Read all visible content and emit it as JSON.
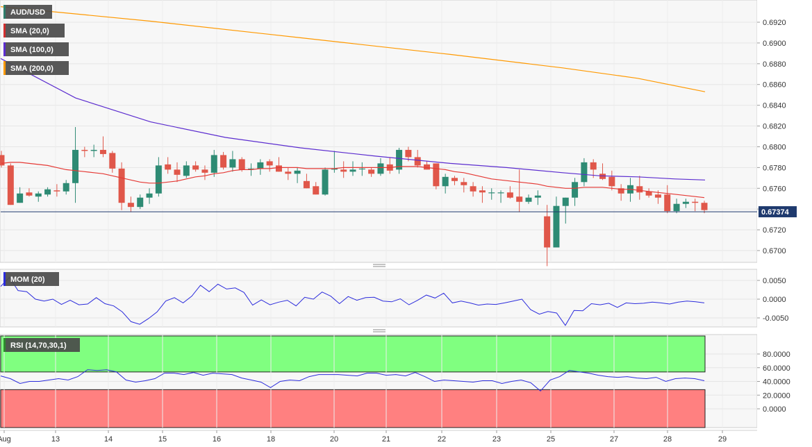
{
  "chart_data": [
    {
      "type": "candlestick",
      "title": "AUD/USD",
      "legend": [
        {
          "label": "AUD/USD",
          "color": "#2e7d6b"
        },
        {
          "label": "SMA (20,0)",
          "color": "#d32f2f"
        },
        {
          "label": "SMA (100,0)",
          "color": "#5b2ccf"
        },
        {
          "label": "SMA (200,0)",
          "color": "#ff9900"
        }
      ],
      "colors": {
        "up": "#2e8b74",
        "down": "#e0574a",
        "sma20": "#e53935",
        "sma100": "#5b2ccf",
        "sma200": "#ff9900",
        "last": "#1f3a6e"
      },
      "ylim": [
        0.6682,
        0.6935
      ],
      "yticks": [
        "0.6920",
        "0.6900",
        "0.6880",
        "0.6860",
        "0.6840",
        "0.6820",
        "0.6800",
        "0.6780",
        "0.6760",
        "0.6740",
        "0.6720",
        "0.6700"
      ],
      "last_value": 0.67374,
      "last_label": "0.67374",
      "candles": [
        [
          0.6792,
          0.6796,
          0.678,
          0.6782
        ],
        [
          0.6782,
          0.6784,
          0.6744,
          0.6744
        ],
        [
          0.6746,
          0.6761,
          0.6746,
          0.6755
        ],
        [
          0.6756,
          0.676,
          0.6752,
          0.6753
        ],
        [
          0.6752,
          0.6757,
          0.6747,
          0.6755
        ],
        [
          0.6754,
          0.6761,
          0.6752,
          0.6759
        ],
        [
          0.6758,
          0.6764,
          0.6752,
          0.6757
        ],
        [
          0.6757,
          0.6768,
          0.6754,
          0.6765
        ],
        [
          0.6765,
          0.6819,
          0.6746,
          0.6797
        ],
        [
          0.6797,
          0.68,
          0.679,
          0.6796
        ],
        [
          0.6796,
          0.6802,
          0.679,
          0.6797
        ],
        [
          0.6797,
          0.681,
          0.679,
          0.6793
        ],
        [
          0.6794,
          0.6796,
          0.6775,
          0.6779
        ],
        [
          0.6779,
          0.6785,
          0.6739,
          0.6746
        ],
        [
          0.6746,
          0.6752,
          0.6737,
          0.6742
        ],
        [
          0.6742,
          0.6754,
          0.674,
          0.6751
        ],
        [
          0.6751,
          0.676,
          0.6745,
          0.6755
        ],
        [
          0.6755,
          0.679,
          0.6752,
          0.6782
        ],
        [
          0.6783,
          0.679,
          0.6774,
          0.6778
        ],
        [
          0.6778,
          0.6785,
          0.6766,
          0.6773
        ],
        [
          0.6772,
          0.6786,
          0.677,
          0.6782
        ],
        [
          0.6782,
          0.6786,
          0.6776,
          0.6778
        ],
        [
          0.6778,
          0.6782,
          0.6768,
          0.6775
        ],
        [
          0.6775,
          0.6797,
          0.6771,
          0.6792
        ],
        [
          0.6792,
          0.6795,
          0.6778,
          0.678
        ],
        [
          0.678,
          0.6796,
          0.6776,
          0.6788
        ],
        [
          0.6788,
          0.679,
          0.6776,
          0.6778
        ],
        [
          0.6778,
          0.6784,
          0.6772,
          0.6779
        ],
        [
          0.6779,
          0.6788,
          0.6773,
          0.6785
        ],
        [
          0.6786,
          0.6788,
          0.6776,
          0.6782
        ],
        [
          0.6782,
          0.679,
          0.6776,
          0.6776
        ],
        [
          0.6776,
          0.678,
          0.6768,
          0.6774
        ],
        [
          0.6774,
          0.678,
          0.6765,
          0.6777
        ],
        [
          0.6767,
          0.6774,
          0.676,
          0.676
        ],
        [
          0.6762,
          0.6766,
          0.6754,
          0.6754
        ],
        [
          0.6754,
          0.678,
          0.6753,
          0.6778
        ],
        [
          0.6778,
          0.6796,
          0.6775,
          0.6779
        ],
        [
          0.6778,
          0.6786,
          0.677,
          0.6776
        ],
        [
          0.6776,
          0.6786,
          0.6772,
          0.6778
        ],
        [
          0.6779,
          0.6785,
          0.6772,
          0.6779
        ],
        [
          0.6778,
          0.678,
          0.6771,
          0.6774
        ],
        [
          0.6774,
          0.6789,
          0.6772,
          0.6784
        ],
        [
          0.6783,
          0.679,
          0.6774,
          0.6777
        ],
        [
          0.6778,
          0.6799,
          0.6774,
          0.6797
        ],
        [
          0.6797,
          0.68,
          0.6786,
          0.679
        ],
        [
          0.679,
          0.6797,
          0.678,
          0.6782
        ],
        [
          0.6783,
          0.6786,
          0.6778,
          0.6778
        ],
        [
          0.6784,
          0.6784,
          0.6759,
          0.6762
        ],
        [
          0.6762,
          0.6774,
          0.6755,
          0.6771
        ],
        [
          0.677,
          0.6772,
          0.6763,
          0.6767
        ],
        [
          0.6766,
          0.677,
          0.6756,
          0.6763
        ],
        [
          0.6762,
          0.6766,
          0.6752,
          0.6757
        ],
        [
          0.6758,
          0.6762,
          0.6746,
          0.6756
        ],
        [
          0.6756,
          0.676,
          0.6749,
          0.6756
        ],
        [
          0.6756,
          0.6758,
          0.6746,
          0.6756
        ],
        [
          0.6756,
          0.6762,
          0.675,
          0.6751
        ],
        [
          0.6752,
          0.6778,
          0.6737,
          0.6747
        ],
        [
          0.6747,
          0.6754,
          0.6745,
          0.6751
        ],
        [
          0.6751,
          0.6758,
          0.6744,
          0.6753
        ],
        [
          0.6733,
          0.6744,
          0.6685,
          0.6703
        ],
        [
          0.6703,
          0.6752,
          0.6703,
          0.6743
        ],
        [
          0.6743,
          0.6751,
          0.6726,
          0.6751
        ],
        [
          0.6751,
          0.677,
          0.6743,
          0.6766
        ],
        [
          0.6766,
          0.6789,
          0.6762,
          0.6785
        ],
        [
          0.6785,
          0.6788,
          0.677,
          0.6778
        ],
        [
          0.6774,
          0.6784,
          0.6768,
          0.6769
        ],
        [
          0.6771,
          0.6777,
          0.6758,
          0.6762
        ],
        [
          0.676,
          0.6764,
          0.6748,
          0.6755
        ],
        [
          0.6755,
          0.677,
          0.6747,
          0.6763
        ],
        [
          0.6762,
          0.6772,
          0.6749,
          0.6756
        ],
        [
          0.6757,
          0.676,
          0.6751,
          0.6753
        ],
        [
          0.6754,
          0.6758,
          0.6745,
          0.6751
        ],
        [
          0.6754,
          0.6763,
          0.6736,
          0.6738
        ],
        [
          0.6738,
          0.675,
          0.6736,
          0.6745
        ],
        [
          0.6745,
          0.675,
          0.6741,
          0.6747
        ],
        [
          0.6747,
          0.675,
          0.6738,
          0.6746
        ],
        [
          0.6746,
          0.6748,
          0.6736,
          0.6739
        ]
      ],
      "sma20": [
        0.6784,
        0.6785,
        0.6785,
        0.6784,
        0.6783,
        0.6782,
        0.678,
        0.6778,
        0.6777,
        0.6776,
        0.6775,
        0.6774,
        0.6772,
        0.677,
        0.6768,
        0.6766,
        0.6765,
        0.6765,
        0.6766,
        0.6767,
        0.6769,
        0.6771,
        0.6772,
        0.6774,
        0.6775,
        0.6777,
        0.6778,
        0.6778,
        0.6779,
        0.6779,
        0.678,
        0.678,
        0.678,
        0.6779,
        0.6779,
        0.6779,
        0.6779,
        0.678,
        0.678,
        0.678,
        0.678,
        0.678,
        0.678,
        0.6781,
        0.6781,
        0.6781,
        0.678,
        0.6779,
        0.6778,
        0.6776,
        0.6775,
        0.6773,
        0.6771,
        0.6769,
        0.6768,
        0.6767,
        0.6766,
        0.6765,
        0.6764,
        0.6762,
        0.6761,
        0.676,
        0.676,
        0.6761,
        0.6761,
        0.6761,
        0.676,
        0.6759,
        0.6759,
        0.6758,
        0.6757,
        0.6756,
        0.6755,
        0.6754,
        0.6753,
        0.6752,
        0.6751
      ],
      "sma100": [
        [
          0,
          0.6885
        ],
        [
          20,
          0.6847
        ],
        [
          40,
          0.6824
        ],
        [
          60,
          0.6809
        ],
        [
          80,
          0.6799
        ],
        [
          100,
          0.6791
        ],
        [
          120,
          0.6784
        ],
        [
          135,
          0.678
        ],
        [
          150,
          0.6775
        ],
        [
          160,
          0.6772
        ],
        [
          170,
          0.6771
        ],
        [
          180,
          0.6769
        ],
        [
          188,
          0.6768
        ]
      ],
      "sma200": [
        [
          0,
          0.6935
        ],
        [
          40,
          0.6921
        ],
        [
          80,
          0.6905
        ],
        [
          120,
          0.6889
        ],
        [
          150,
          0.6876
        ],
        [
          170,
          0.6866
        ],
        [
          188,
          0.6853
        ]
      ],
      "x_total": 188,
      "candle_step": 2.5
    },
    {
      "type": "line",
      "title": "MOM (20)",
      "color": "#2b2bdc",
      "ylim": [
        -0.0078,
        0.0072
      ],
      "yticks": [
        "0.0050",
        "0.0000",
        "-0.0050"
      ],
      "values": [
        0.0034,
        0.0058,
        0.0023,
        0.002,
        0.0,
        -0.0005,
        0.0,
        -0.0014,
        -0.0003,
        -0.0015,
        -0.0013,
        0.0004,
        -0.0012,
        -0.0018,
        -0.0034,
        -0.006,
        -0.0067,
        -0.0052,
        -0.0034,
        -0.0005,
        0.0004,
        -0.001,
        0.0008,
        0.0037,
        0.002,
        0.004,
        0.0027,
        0.003,
        0.0018,
        -0.0016,
        -0.0002,
        -0.0015,
        -0.0008,
        -0.0003,
        -0.0018,
        0.0005,
        0.0,
        0.0019,
        0.0008,
        -0.0012,
        0.0007,
        -0.0003,
        0.0004,
        0.0005,
        -0.0005,
        -0.0007,
        0.0001,
        -0.0015,
        -0.0003,
        0.0011,
        0.0003,
        0.0016,
        -0.001,
        -0.0005,
        -0.001,
        -0.0016,
        -0.0013,
        -0.0014,
        -0.001,
        -0.0005,
        0.0,
        -0.0028,
        -0.004,
        -0.0033,
        -0.0037,
        -0.007,
        -0.003,
        -0.0031,
        -0.0012,
        -0.0015,
        -0.0011,
        -0.0022,
        -0.001,
        -0.0012,
        -0.0011,
        -0.0008,
        -0.001,
        -0.0013,
        -0.0008,
        -0.0005,
        -0.0007,
        -0.001
      ]
    },
    {
      "type": "line",
      "title": "RSI (14,70,30,1)",
      "color": "#2b2bdc",
      "ylim": [
        0,
        100
      ],
      "yticks": [
        "80.0000",
        "60.0000",
        "40.0000",
        "20.0000",
        "0.0000"
      ],
      "overbought": 70,
      "oversold": 30,
      "zone_colors": {
        "overbought": "#80ff80",
        "oversold": "#ff8080"
      },
      "values": [
        48,
        44,
        37,
        40,
        40,
        42,
        44,
        42,
        47,
        57,
        56,
        57,
        54,
        42,
        39,
        41,
        44,
        52,
        52,
        50,
        53,
        49,
        52,
        51,
        50,
        45,
        42,
        39,
        31,
        40,
        42,
        41,
        47,
        50,
        50,
        50,
        49,
        48,
        52,
        52,
        49,
        50,
        48,
        53,
        47,
        40,
        42,
        41,
        40,
        39,
        41,
        41,
        37,
        40,
        42,
        38,
        26,
        42,
        47,
        56,
        54,
        52,
        49,
        47,
        46,
        47,
        45,
        44,
        46,
        40,
        44,
        45,
        44,
        41
      ]
    }
  ],
  "x_axis": {
    "labels": [
      "Aug",
      "13",
      "14",
      "15",
      "16",
      "18",
      "20",
      "21",
      "22",
      "23",
      "25",
      "27",
      "28",
      "29"
    ]
  },
  "panes": [
    {
      "name": "price"
    },
    {
      "name": "momentum"
    },
    {
      "name": "rsi"
    }
  ]
}
